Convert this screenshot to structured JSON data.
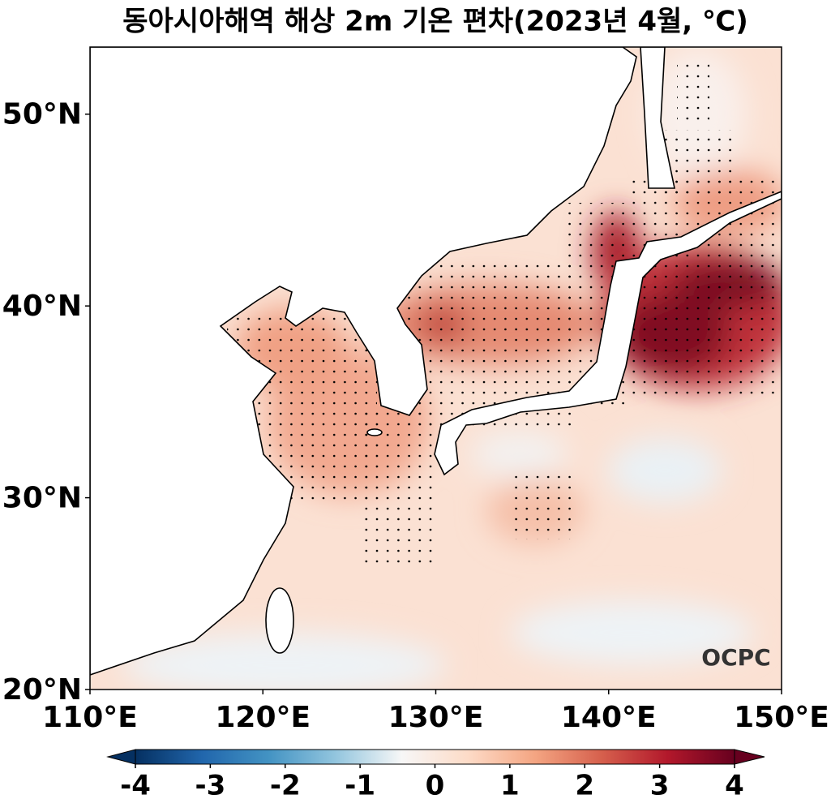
{
  "map": {
    "title": "동아시아해역 해상 2m 기온 편차(2023년 4월, ℃)",
    "xlim": [
      110,
      150
    ],
    "ylim": [
      20,
      53.5
    ],
    "xticks": [
      {
        "value": 110,
        "label": "110°E"
      },
      {
        "value": 120,
        "label": "120°E"
      },
      {
        "value": 130,
        "label": "130°E"
      },
      {
        "value": 140,
        "label": "140°E"
      },
      {
        "value": 150,
        "label": "150°E"
      }
    ],
    "yticks": [
      {
        "value": 20,
        "label": "20°N"
      },
      {
        "value": 30,
        "label": "30°N"
      },
      {
        "value": 40,
        "label": "40°N"
      },
      {
        "value": 50,
        "label": "50°N"
      }
    ],
    "colorbar": {
      "clim": [
        -4,
        4
      ],
      "ticks": [
        -4,
        -3,
        -2,
        -1,
        0,
        1,
        2,
        3,
        4
      ],
      "colors": [
        "#053061",
        "#2166ac",
        "#4393c3",
        "#92c5de",
        "#f7f7f7",
        "#fddbc7",
        "#f4a582",
        "#d6604d",
        "#b2182b",
        "#67001f"
      ]
    },
    "logo": "OCPC"
  }
}
